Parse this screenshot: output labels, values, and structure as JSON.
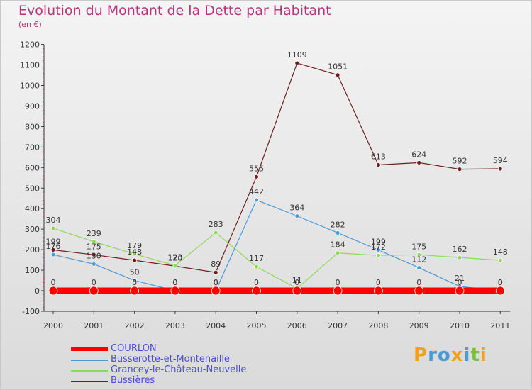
{
  "header": {
    "title": "Evolution du Montant de la Dette par Habitant",
    "subtitle": "(en €)"
  },
  "logo": {
    "text": "Proxiti",
    "letters": [
      {
        "ch": "P",
        "color": "#f0a020"
      },
      {
        "ch": "r",
        "color": "#4b9ad8"
      },
      {
        "ch": "o",
        "color": "#4b9ad8"
      },
      {
        "ch": "x",
        "color": "#f0a020"
      },
      {
        "ch": "i",
        "color": "#4b9ad8"
      },
      {
        "ch": "t",
        "color": "#7ac142"
      },
      {
        "ch": "i",
        "color": "#f0a020"
      }
    ]
  },
  "chart_data": {
    "type": "line",
    "title": "Evolution du Montant de la Dette par Habitant",
    "subtitle": "(en €)",
    "x": [
      "2000",
      "2001",
      "2002",
      "2003",
      "2004",
      "2005",
      "2006",
      "2007",
      "2008",
      "2009",
      "2010",
      "2011"
    ],
    "ylim": [
      -100,
      1200
    ],
    "yticks": [
      -100,
      0,
      100,
      200,
      300,
      400,
      500,
      600,
      700,
      800,
      900,
      1000,
      1100,
      1200
    ],
    "grid": false,
    "legend_position": "bottom-left",
    "series": [
      {
        "name": "COURLON",
        "color": "#ff0000",
        "values": [
          0,
          0,
          0,
          0,
          0,
          0,
          0,
          0,
          0,
          0,
          0,
          0
        ],
        "labels": [
          "0",
          "0",
          "0",
          "0",
          "0",
          "0",
          "0",
          "0",
          "0",
          "0",
          "0",
          "0"
        ]
      },
      {
        "name": "Busserotte-et-Montenaille",
        "color": "#4b9ad8",
        "values": [
          176,
          130,
          50,
          0,
          0,
          442,
          364,
          282,
          199,
          112,
          21,
          0
        ],
        "labels": [
          "176",
          "130",
          "50",
          "0",
          "0",
          "442",
          "364",
          "282",
          "199",
          "112",
          "21",
          "0"
        ]
      },
      {
        "name": "Grancey-le-Château-Neuvelle",
        "color": "#8fd85a",
        "values": [
          304,
          239,
          179,
          123,
          283,
          117,
          11,
          184,
          172,
          175,
          162,
          148
        ],
        "labels": [
          "304",
          "239",
          "179",
          "123",
          "283",
          "117",
          "11",
          "184",
          "172",
          "175",
          "162",
          "148"
        ]
      },
      {
        "name": "Bussières",
        "color": "#6e1e1e",
        "values": [
          199,
          175,
          148,
          120,
          89,
          555,
          1109,
          1051,
          613,
          624,
          592,
          594
        ],
        "labels": [
          "199",
          "175",
          "148",
          "120",
          "89",
          "555",
          "1109",
          "1051",
          "613",
          "624",
          "592",
          "594"
        ]
      }
    ]
  }
}
